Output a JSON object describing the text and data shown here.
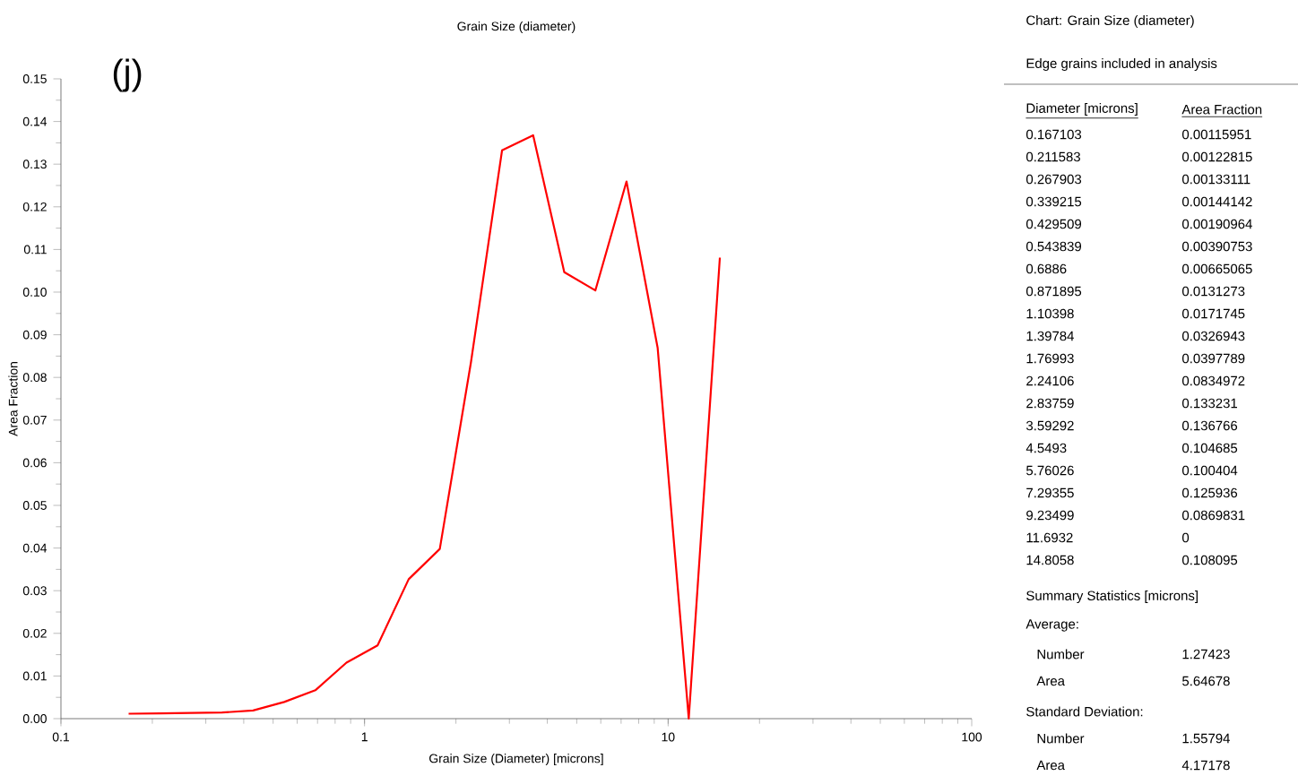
{
  "chart_data": {
    "type": "line",
    "title": "Grain Size (diameter)",
    "xlabel": "Grain Size (Diameter) [microns]",
    "ylabel": "Area Fraction",
    "log": "x",
    "color": "#ff0000",
    "x": [
      0.167103,
      0.211583,
      0.267903,
      0.339215,
      0.429509,
      0.543839,
      0.6886,
      0.871895,
      1.10398,
      1.39784,
      1.76993,
      2.24106,
      2.83759,
      3.59292,
      4.5493,
      5.76026,
      7.29355,
      9.23499,
      11.6932,
      14.8058
    ],
    "values": [
      0.00115951,
      0.00122815,
      0.00133111,
      0.00144142,
      0.00190964,
      0.00390753,
      0.00665065,
      0.0131273,
      0.0171745,
      0.0326943,
      0.0397789,
      0.0834972,
      0.133231,
      0.136766,
      0.104685,
      0.100404,
      0.125936,
      0.0869831,
      0,
      0.108095
    ],
    "xlim": [
      0.1,
      100
    ],
    "xticks": [
      0.1,
      1,
      10,
      100
    ],
    "ylim": [
      0,
      0.15
    ],
    "yticks": [
      {
        "value": 0,
        "label": "0.00"
      },
      {
        "value": 0.01,
        "label": "0.01"
      },
      {
        "value": 0.02,
        "label": "0.02"
      },
      {
        "value": 0.03,
        "label": "0.03"
      },
      {
        "value": 0.04,
        "label": "0.04"
      },
      {
        "value": 0.05,
        "label": "0.05"
      },
      {
        "value": 0.06,
        "label": "0.06"
      },
      {
        "value": 0.07,
        "label": "0.07"
      },
      {
        "value": 0.08,
        "label": "0.08"
      },
      {
        "value": 0.09,
        "label": "0.09"
      },
      {
        "value": 0.1,
        "label": "0.10"
      },
      {
        "value": 0.11,
        "label": "0.11"
      },
      {
        "value": 0.12,
        "label": "0.12"
      },
      {
        "value": 0.13,
        "label": "0.13"
      },
      {
        "value": 0.14,
        "label": "0.14"
      },
      {
        "value": 0.15,
        "label": "0.15"
      }
    ],
    "annotations": [
      "(j)",
      "Chart:  Grain Size (diameter)",
      "Edge grains included in analysis",
      "Diameter [microns]",
      "Area Fraction",
      "0.167103",
      "0.00115951",
      "0.211583",
      "0.00122815",
      "0.267903",
      "0.00133111",
      "0.339215",
      "0.00144142",
      "0.429509",
      "0.00190964",
      "0.543839",
      "0.00390753",
      "0.6886",
      "0.00665065",
      "0.871895",
      "0.0131273",
      "1.10398",
      "0.0171745",
      "1.39784",
      "0.0326943",
      "1.76993",
      "0.0397789",
      "2.24106",
      "0.0834972",
      "2.83759",
      "0.133231",
      "3.59292",
      "0.136766",
      "4.5493",
      "0.104685",
      "5.76026",
      "0.100404",
      "7.29355",
      "0.125936",
      "9.23499",
      "0.0869831",
      "11.6932",
      "0",
      "14.8058",
      "0.108095",
      "Summary Statistics [microns]",
      "Average:",
      "Number",
      "1.27423",
      "Area",
      "5.64678",
      "Standard Deviation:",
      "Number",
      "1.55794",
      "Area",
      "4.17178"
    ]
  }
}
